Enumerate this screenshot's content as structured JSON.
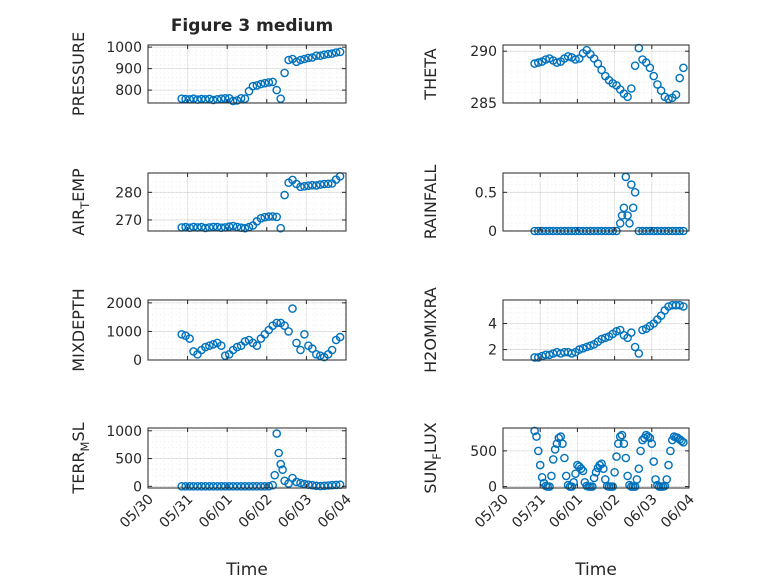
{
  "figure_title": "Figure 3 medium",
  "marker_color": "#0072BD",
  "chart_data": [
    {
      "type": "scatter",
      "id": "pressure",
      "ylabel": "PRESSURE",
      "xlim": [
        0,
        5
      ],
      "ylim": [
        740,
        1010
      ],
      "yticks": [
        800,
        900,
        1000
      ],
      "ytick_labels": [
        "800",
        "900",
        "1000"
      ],
      "xticks": [
        0,
        1,
        2,
        3,
        4,
        5
      ],
      "xtick_labels": [],
      "grid": true,
      "marker": "o",
      "x": [
        0.85,
        0.95,
        1.05,
        1.15,
        1.25,
        1.35,
        1.45,
        1.55,
        1.65,
        1.75,
        1.85,
        1.95,
        2.05,
        2.15,
        2.25,
        2.35,
        2.45,
        2.55,
        2.65,
        2.75,
        2.85,
        2.95,
        3.05,
        3.15,
        3.25,
        3.35,
        3.45,
        3.55,
        3.65,
        3.75,
        3.85,
        3.95,
        4.05,
        4.15,
        4.25,
        4.35,
        4.45,
        4.55,
        4.65,
        4.75,
        4.85
      ],
      "y": [
        760,
        758,
        757,
        760,
        756,
        758,
        757,
        759,
        754,
        757,
        760,
        762,
        762,
        750,
        752,
        762,
        760,
        795,
        818,
        822,
        828,
        832,
        836,
        838,
        800,
        760,
        880,
        940,
        945,
        932,
        940,
        945,
        950,
        952,
        960,
        960,
        965,
        968,
        970,
        975,
        978
      ]
    },
    {
      "type": "scatter",
      "id": "theta",
      "ylabel": "THETA",
      "xlim": [
        0,
        5
      ],
      "ylim": [
        285,
        290.6
      ],
      "yticks": [
        285,
        290
      ],
      "ytick_labels": [
        "285",
        "290"
      ],
      "xticks": [
        0,
        1,
        2,
        3,
        4,
        5
      ],
      "xtick_labels": [],
      "grid": true,
      "marker": "o",
      "x": [
        0.85,
        0.95,
        1.05,
        1.15,
        1.25,
        1.35,
        1.45,
        1.55,
        1.65,
        1.75,
        1.85,
        1.95,
        2.05,
        2.15,
        2.25,
        2.35,
        2.45,
        2.55,
        2.65,
        2.75,
        2.85,
        2.95,
        3.05,
        3.15,
        3.25,
        3.35,
        3.45,
        3.55,
        3.65,
        3.75,
        3.85,
        3.95,
        4.05,
        4.15,
        4.25,
        4.35,
        4.45,
        4.55,
        4.65,
        4.75,
        4.85
      ],
      "y": [
        288.8,
        288.9,
        289.0,
        289.2,
        289.3,
        289.1,
        288.9,
        289.0,
        289.3,
        289.5,
        289.4,
        289.2,
        289.3,
        289.8,
        290.1,
        289.7,
        289.3,
        288.8,
        288.2,
        287.6,
        287.2,
        286.9,
        286.7,
        286.3,
        285.9,
        285.6,
        286.4,
        288.6,
        290.3,
        289.2,
        288.9,
        288.4,
        287.6,
        286.8,
        286.2,
        285.6,
        285.4,
        285.5,
        285.8,
        287.4,
        288.4
      ]
    },
    {
      "type": "scatter",
      "id": "air_temp",
      "ylabel": "AIR_TEMP",
      "xlim": [
        0,
        5
      ],
      "ylim": [
        266,
        287
      ],
      "yticks": [
        270,
        280
      ],
      "ytick_labels": [
        "270",
        "280"
      ],
      "xticks": [
        0,
        1,
        2,
        3,
        4,
        5
      ],
      "xtick_labels": [],
      "grid": true,
      "marker": "o",
      "x": [
        0.85,
        0.95,
        1.05,
        1.15,
        1.25,
        1.35,
        1.45,
        1.55,
        1.65,
        1.75,
        1.85,
        1.95,
        2.05,
        2.15,
        2.25,
        2.35,
        2.45,
        2.55,
        2.65,
        2.75,
        2.85,
        2.95,
        3.05,
        3.15,
        3.25,
        3.35,
        3.45,
        3.55,
        3.65,
        3.75,
        3.85,
        3.95,
        4.05,
        4.15,
        4.25,
        4.35,
        4.45,
        4.55,
        4.65,
        4.75,
        4.85
      ],
      "y": [
        267.3,
        267.4,
        267.2,
        267.5,
        267.3,
        267.4,
        267.1,
        267.3,
        267.5,
        267.4,
        267.2,
        267.3,
        267.6,
        267.8,
        267.5,
        267.2,
        267.0,
        267.4,
        268.0,
        269.5,
        270.6,
        271.0,
        271.2,
        271.3,
        271.1,
        267.0,
        279.0,
        283.5,
        284.5,
        283.0,
        282.0,
        282.2,
        282.4,
        282.6,
        282.5,
        282.8,
        283.0,
        283.1,
        283.2,
        284.6,
        285.8
      ]
    },
    {
      "type": "scatter",
      "id": "rainfall",
      "ylabel": "RAINFALL",
      "xlim": [
        0,
        5
      ],
      "ylim": [
        0,
        0.75
      ],
      "yticks": [
        0,
        0.5
      ],
      "ytick_labels": [
        "0",
        "0.5"
      ],
      "xticks": [
        0,
        1,
        2,
        3,
        4,
        5
      ],
      "xtick_labels": [],
      "grid": true,
      "marker": "o",
      "x": [
        0.85,
        0.95,
        1.05,
        1.15,
        1.25,
        1.35,
        1.45,
        1.55,
        1.65,
        1.75,
        1.85,
        1.95,
        2.05,
        2.15,
        2.25,
        2.35,
        2.45,
        2.55,
        2.65,
        2.75,
        2.85,
        2.95,
        3.05,
        3.15,
        3.2,
        3.25,
        3.3,
        3.35,
        3.4,
        3.45,
        3.5,
        3.55,
        3.65,
        3.75,
        3.85,
        3.95,
        4.05,
        4.15,
        4.25,
        4.35,
        4.45,
        4.55,
        4.65,
        4.75,
        4.85
      ],
      "y": [
        0,
        0,
        0,
        0,
        0,
        0,
        0,
        0,
        0,
        0,
        0,
        0,
        0,
        0,
        0,
        0,
        0,
        0,
        0,
        0,
        0,
        0,
        0,
        0.1,
        0.2,
        0.3,
        0.7,
        0.2,
        0.1,
        0.6,
        0.3,
        0.5,
        0,
        0,
        0,
        0,
        0,
        0,
        0,
        0,
        0,
        0,
        0,
        0,
        0
      ]
    },
    {
      "type": "scatter",
      "id": "mixdepth",
      "ylabel": "MIXDEPTH",
      "xlim": [
        0,
        5
      ],
      "ylim": [
        0,
        2100
      ],
      "yticks": [
        0,
        1000,
        2000
      ],
      "ytick_labels": [
        "0",
        "1000",
        "2000"
      ],
      "xticks": [
        0,
        1,
        2,
        3,
        4,
        5
      ],
      "xtick_labels": [],
      "grid": true,
      "marker": "o",
      "x": [
        0.85,
        0.95,
        1.05,
        1.15,
        1.25,
        1.35,
        1.45,
        1.55,
        1.65,
        1.75,
        1.85,
        1.95,
        2.05,
        2.15,
        2.25,
        2.35,
        2.45,
        2.55,
        2.65,
        2.75,
        2.85,
        2.95,
        3.05,
        3.15,
        3.25,
        3.35,
        3.45,
        3.55,
        3.65,
        3.75,
        3.85,
        3.95,
        4.05,
        4.15,
        4.25,
        4.35,
        4.45,
        4.55,
        4.65,
        4.75,
        4.85
      ],
      "y": [
        900,
        850,
        750,
        300,
        200,
        350,
        450,
        500,
        550,
        600,
        500,
        150,
        200,
        350,
        450,
        500,
        650,
        700,
        600,
        500,
        750,
        900,
        1050,
        1200,
        1300,
        1300,
        1200,
        1000,
        1800,
        600,
        350,
        900,
        500,
        400,
        200,
        150,
        100,
        200,
        350,
        700,
        800
      ]
    },
    {
      "type": "scatter",
      "id": "h2omixra",
      "ylabel": "H2OMIXRA",
      "xlim": [
        0,
        5
      ],
      "ylim": [
        1.2,
        5.8
      ],
      "yticks": [
        2,
        4
      ],
      "ytick_labels": [
        "2",
        "4"
      ],
      "xticks": [
        0,
        1,
        2,
        3,
        4,
        5
      ],
      "xtick_labels": [],
      "grid": true,
      "marker": "o",
      "x": [
        0.85,
        0.95,
        1.05,
        1.15,
        1.25,
        1.35,
        1.45,
        1.55,
        1.65,
        1.75,
        1.85,
        1.95,
        2.05,
        2.15,
        2.25,
        2.35,
        2.45,
        2.55,
        2.65,
        2.75,
        2.85,
        2.95,
        3.05,
        3.15,
        3.25,
        3.35,
        3.45,
        3.55,
        3.65,
        3.75,
        3.85,
        3.95,
        4.05,
        4.15,
        4.25,
        4.35,
        4.45,
        4.55,
        4.65,
        4.75,
        4.85
      ],
      "y": [
        1.4,
        1.4,
        1.5,
        1.6,
        1.6,
        1.7,
        1.8,
        1.7,
        1.8,
        1.8,
        1.7,
        1.8,
        2.0,
        2.1,
        2.2,
        2.3,
        2.4,
        2.6,
        2.8,
        2.9,
        3.0,
        3.2,
        3.4,
        3.5,
        3.1,
        2.9,
        3.3,
        2.2,
        1.7,
        3.5,
        3.6,
        3.8,
        4.0,
        4.3,
        4.6,
        5.0,
        5.3,
        5.4,
        5.4,
        5.4,
        5.3
      ]
    },
    {
      "type": "scatter",
      "id": "terr_msl",
      "ylabel": "TERR_MSL",
      "xlim": [
        0,
        5
      ],
      "ylim": [
        -30,
        1050
      ],
      "yticks": [
        0,
        500,
        1000
      ],
      "ytick_labels": [
        "0",
        "500",
        "1000"
      ],
      "xticks": [
        0,
        1,
        2,
        3,
        4,
        5
      ],
      "xtick_labels": [
        "05/30",
        "05/31",
        "06/01",
        "06/02",
        "06/03",
        "06/04"
      ],
      "xlabel": "Time",
      "grid": true,
      "marker": "o",
      "x": [
        0.85,
        0.95,
        1.05,
        1.15,
        1.25,
        1.35,
        1.45,
        1.55,
        1.65,
        1.75,
        1.85,
        1.95,
        2.05,
        2.15,
        2.25,
        2.35,
        2.45,
        2.55,
        2.65,
        2.75,
        2.85,
        2.95,
        3.05,
        3.15,
        3.2,
        3.25,
        3.3,
        3.35,
        3.4,
        3.45,
        3.55,
        3.65,
        3.75,
        3.85,
        3.95,
        4.05,
        4.15,
        4.25,
        4.35,
        4.45,
        4.55,
        4.65,
        4.75,
        4.85
      ],
      "y": [
        0,
        0,
        0,
        0,
        0,
        0,
        0,
        0,
        0,
        0,
        0,
        0,
        0,
        0,
        0,
        0,
        0,
        0,
        0,
        0,
        0,
        0,
        0,
        20,
        200,
        950,
        600,
        400,
        300,
        100,
        50,
        150,
        80,
        60,
        40,
        30,
        20,
        10,
        5,
        10,
        15,
        20,
        25,
        30
      ]
    },
    {
      "type": "scatter",
      "id": "sun_flux",
      "ylabel": "SUN_FLUX",
      "xlim": [
        0,
        5
      ],
      "ylim": [
        -20,
        820
      ],
      "yticks": [
        0,
        500
      ],
      "ytick_labels": [
        "0",
        "500"
      ],
      "xticks": [
        0,
        1,
        2,
        3,
        4,
        5
      ],
      "xtick_labels": [
        "05/30",
        "05/31",
        "06/01",
        "06/02",
        "06/03",
        "06/04"
      ],
      "xlabel": "Time",
      "grid": true,
      "marker": "o",
      "x": [
        0.85,
        0.9,
        0.95,
        1.0,
        1.05,
        1.1,
        1.15,
        1.2,
        1.25,
        1.3,
        1.35,
        1.4,
        1.45,
        1.5,
        1.55,
        1.6,
        1.65,
        1.7,
        1.75,
        1.8,
        1.85,
        1.9,
        1.95,
        2.0,
        2.05,
        2.1,
        2.15,
        2.2,
        2.25,
        2.3,
        2.35,
        2.4,
        2.45,
        2.5,
        2.55,
        2.6,
        2.65,
        2.7,
        2.75,
        2.8,
        2.85,
        2.9,
        2.95,
        3.0,
        3.05,
        3.1,
        3.15,
        3.2,
        3.25,
        3.3,
        3.35,
        3.4,
        3.45,
        3.5,
        3.55,
        3.6,
        3.65,
        3.7,
        3.75,
        3.8,
        3.85,
        3.9,
        3.95,
        4.0,
        4.05,
        4.1,
        4.15,
        4.2,
        4.25,
        4.3,
        4.35,
        4.4,
        4.45,
        4.5,
        4.55,
        4.6,
        4.65,
        4.7,
        4.75,
        4.8,
        4.85
      ],
      "y": [
        780,
        700,
        500,
        300,
        130,
        50,
        10,
        0,
        0,
        150,
        380,
        520,
        600,
        680,
        700,
        600,
        400,
        150,
        20,
        0,
        0,
        60,
        180,
        300,
        280,
        250,
        220,
        60,
        10,
        0,
        0,
        0,
        120,
        200,
        260,
        300,
        320,
        250,
        100,
        10,
        0,
        0,
        0,
        200,
        420,
        600,
        700,
        720,
        600,
        400,
        150,
        20,
        0,
        0,
        0,
        100,
        250,
        500,
        650,
        680,
        720,
        700,
        680,
        600,
        350,
        100,
        20,
        0,
        0,
        0,
        10,
        100,
        300,
        500,
        650,
        700,
        690,
        680,
        660,
        640,
        620
      ]
    }
  ]
}
